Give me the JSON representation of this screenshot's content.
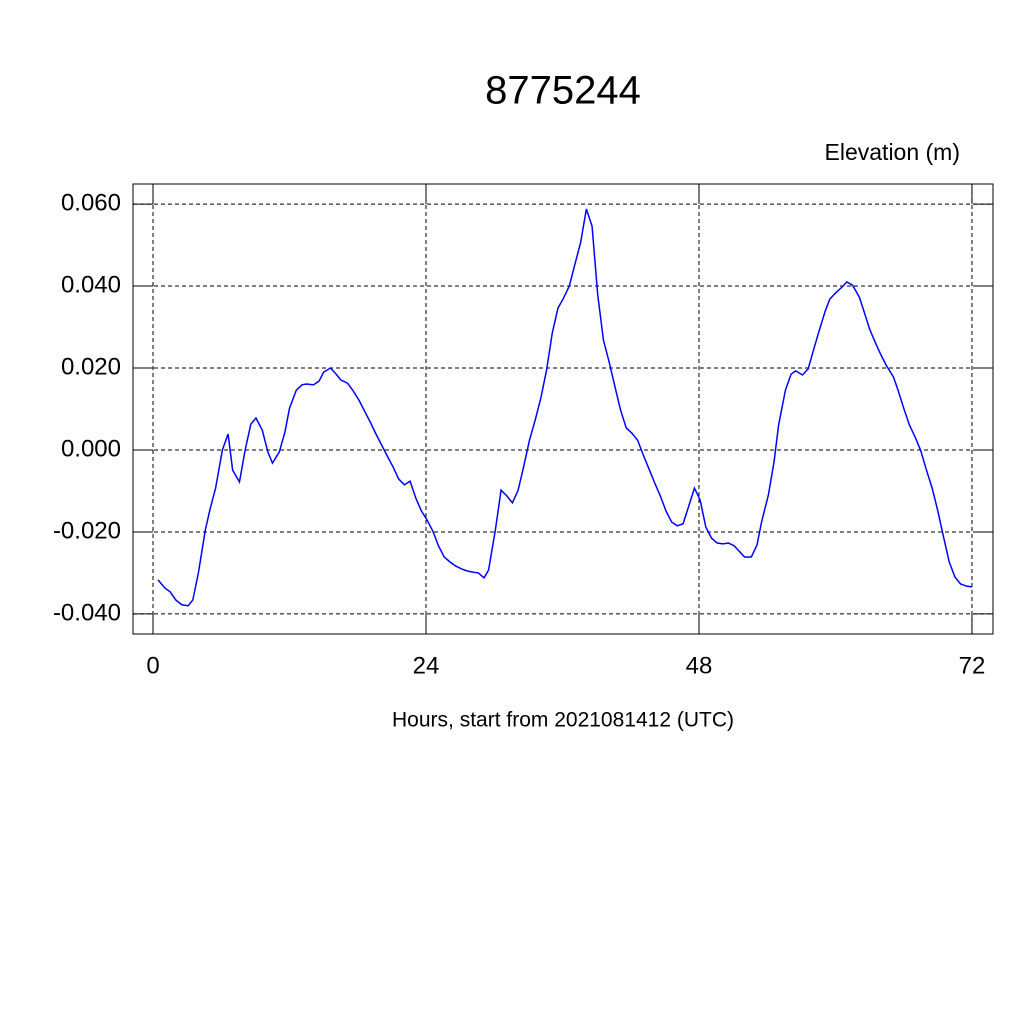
{
  "chart_data": {
    "type": "line",
    "title": "8775244",
    "y_axis_label": "Elevation (m)",
    "x_axis_label": "Hours, start from 2021081412 (UTC)",
    "color": "#0000ff",
    "grid": true,
    "xlim": [
      -1.76,
      73.85
    ],
    "ylim": [
      -0.0449,
      0.0649
    ],
    "xticks": [
      0,
      24,
      48,
      72
    ],
    "yticks": [
      {
        "value": -0.04,
        "label": "-0.040"
      },
      {
        "value": -0.02,
        "label": "-0.020"
      },
      {
        "value": 0,
        "label": "0.000"
      },
      {
        "value": 0.02,
        "label": "0.020"
      },
      {
        "value": 0.04,
        "label": "0.040"
      },
      {
        "value": 0.06,
        "label": "0.060"
      }
    ],
    "x": [
      0.44,
      1.05,
      1.5,
      2.0,
      2.55,
      3.1,
      3.5,
      4.0,
      4.6,
      5.0,
      5.5,
      6.1,
      6.6,
      7.0,
      7.6,
      8.1,
      8.6,
      9.05,
      9.6,
      10.1,
      10.5,
      11.1,
      11.6,
      12.0,
      12.6,
      13.1,
      13.5,
      14.1,
      14.6,
      15.0,
      15.6,
      16.1,
      16.5,
      17.1,
      17.6,
      18.1,
      18.6,
      19.1,
      19.6,
      20.1,
      20.6,
      21.1,
      21.6,
      22.1,
      22.6,
      23.1,
      23.6,
      24.1,
      24.6,
      25.1,
      25.6,
      26.1,
      26.6,
      27.1,
      27.6,
      28.1,
      28.6,
      29.1,
      29.5,
      30.1,
      30.6,
      31.1,
      31.6,
      32.1,
      32.6,
      33.1,
      33.6,
      34.1,
      34.6,
      35.1,
      35.6,
      36.1,
      36.6,
      37.1,
      37.6,
      38.1,
      38.6,
      39.1,
      39.6,
      40.1,
      40.6,
      41.1,
      41.6,
      42.1,
      42.6,
      43.1,
      43.6,
      44.1,
      44.6,
      45.1,
      45.6,
      46.1,
      46.6,
      47.1,
      47.6,
      48.1,
      48.6,
      49.1,
      49.6,
      50.1,
      50.6,
      51.1,
      51.6,
      52.0,
      52.6,
      53.1,
      53.5,
      54.1,
      54.6,
      55.0,
      55.6,
      56.1,
      56.5,
      57.1,
      57.6,
      58.0,
      58.5,
      59.1,
      59.5,
      60.0,
      60.6,
      61.0,
      61.5,
      62.1,
      62.5,
      63.0,
      63.6,
      64.0,
      64.5,
      65.1,
      65.5,
      66.0,
      66.5,
      67.0,
      67.5,
      68.0,
      68.5,
      69.0,
      69.5,
      70.0,
      70.5,
      71.0,
      71.5,
      72.0
    ],
    "values": [
      -0.0317,
      -0.0337,
      -0.0346,
      -0.0366,
      -0.0378,
      -0.038,
      -0.0366,
      -0.0298,
      -0.0195,
      -0.0146,
      -0.0093,
      0.0,
      0.0039,
      -0.0049,
      -0.0078,
      0.0,
      0.0063,
      0.0078,
      0.0049,
      -0.0005,
      -0.0032,
      -0.0005,
      0.0044,
      0.0102,
      0.0146,
      0.0159,
      0.0161,
      0.0159,
      0.0168,
      0.019,
      0.02,
      0.0185,
      0.0171,
      0.0163,
      0.0144,
      0.0122,
      0.0095,
      0.0068,
      0.0039,
      0.0012,
      -0.0015,
      -0.0041,
      -0.0071,
      -0.0085,
      -0.0076,
      -0.0117,
      -0.0149,
      -0.0171,
      -0.0198,
      -0.0234,
      -0.0261,
      -0.0273,
      -0.0283,
      -0.029,
      -0.0295,
      -0.0298,
      -0.03,
      -0.0312,
      -0.0293,
      -0.0195,
      -0.0098,
      -0.0112,
      -0.0129,
      -0.0098,
      -0.0039,
      0.0024,
      0.0073,
      0.0127,
      0.0195,
      0.0285,
      0.0346,
      0.0371,
      0.04,
      0.0454,
      0.0507,
      0.0588,
      0.0546,
      0.0378,
      0.0268,
      0.0215,
      0.0156,
      0.0098,
      0.0054,
      0.0041,
      0.0024,
      -0.0012,
      -0.0046,
      -0.008,
      -0.0112,
      -0.0149,
      -0.0176,
      -0.0185,
      -0.018,
      -0.0137,
      -0.0093,
      -0.0122,
      -0.0188,
      -0.0215,
      -0.0227,
      -0.0229,
      -0.0227,
      -0.0234,
      -0.0249,
      -0.0261,
      -0.0261,
      -0.0232,
      -0.0176,
      -0.011,
      -0.0029,
      0.0061,
      0.0146,
      0.0185,
      0.0193,
      0.0183,
      0.0198,
      0.0237,
      0.0285,
      0.0339,
      0.0368,
      0.0383,
      0.0398,
      0.041,
      0.0402,
      0.0373,
      0.0339,
      0.0295,
      0.0256,
      0.0232,
      0.0205,
      0.0178,
      0.0146,
      0.0102,
      0.0061,
      0.0032,
      -0.0002,
      -0.0049,
      -0.0093,
      -0.0149,
      -0.0212,
      -0.0273,
      -0.031,
      -0.0327,
      -0.0332,
      -0.0334
    ]
  }
}
